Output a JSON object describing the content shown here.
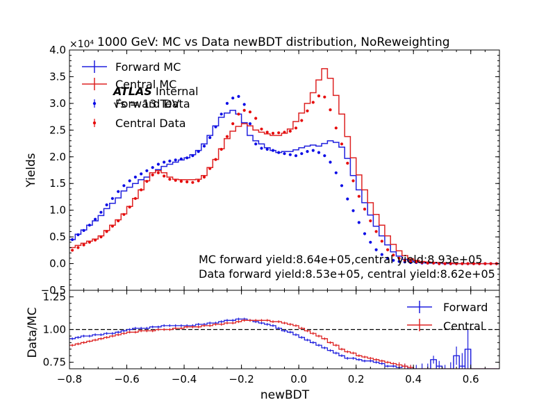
{
  "chart_data": [
    {
      "type": "line",
      "panel": "main",
      "title": "1000 GeV: MC vs Data newBDT distribution, NoReweighting",
      "ylabel": "Yields",
      "xlabel": "",
      "scale_label": "×10⁴",
      "xlim": [
        -0.8,
        0.7
      ],
      "ylim": [
        -0.5,
        4.0
      ],
      "xticks": [
        -0.8,
        -0.6,
        -0.4,
        -0.2,
        0.0,
        0.2,
        0.4,
        0.6
      ],
      "xtick_labels": [
        "−0.8",
        "−0.6",
        "−0.4",
        "−0.2",
        "0.0",
        "0.2",
        "0.4",
        "0.6"
      ],
      "yticks": [
        -0.5,
        0.0,
        0.5,
        1.0,
        1.5,
        2.0,
        2.5,
        3.0,
        3.5,
        4.0
      ],
      "ytick_labels": [
        "−0.5",
        "0.0",
        "0.5",
        "1.0",
        "1.5",
        "2.0",
        "2.5",
        "3.0",
        "3.5",
        "4.0"
      ],
      "bin_edges_start": -0.8,
      "bin_width": 0.02,
      "legend": {
        "placement": "upper-left",
        "entries": [
          "Forward MC",
          "Central MC",
          "Forward Data",
          "Central Data"
        ]
      },
      "atlas_label": {
        "bold": "ATLAS",
        "rest": " Internal",
        "energy": "√s = 13 TeV"
      },
      "annotations": [
        "MC forward yield:8.64e+05,central yield:8.93e+05",
        "Data forward yield:8.53e+05, central yield:8.62e+05"
      ],
      "series": [
        {
          "name": "Forward MC",
          "style": "step",
          "color": "#1f1fdd",
          "values": [
            0.45,
            0.55,
            0.63,
            0.72,
            0.8,
            0.9,
            1.03,
            1.13,
            1.23,
            1.36,
            1.43,
            1.5,
            1.57,
            1.62,
            1.7,
            1.76,
            1.82,
            1.86,
            1.9,
            1.94,
            1.98,
            2.04,
            2.12,
            2.24,
            2.4,
            2.58,
            2.74,
            2.82,
            2.87,
            2.8,
            2.64,
            2.4,
            2.3,
            2.24,
            2.17,
            2.12,
            2.08,
            2.1,
            2.1,
            2.13,
            2.17,
            2.2,
            2.22,
            2.2,
            2.25,
            2.3,
            2.27,
            2.18,
            1.97,
            1.65,
            1.38,
            1.14,
            0.91,
            0.7,
            0.52,
            0.35,
            0.22,
            0.14,
            0.08,
            0.05,
            0.03,
            0.02,
            0.01,
            0.01,
            0.01,
            0.0,
            0.0,
            0.0,
            0.0,
            0.0,
            0.0,
            0.0,
            0.0,
            0.0,
            0.0
          ]
        },
        {
          "name": "Central MC",
          "style": "step",
          "color": "#dd2222",
          "values": [
            0.3,
            0.34,
            0.38,
            0.42,
            0.46,
            0.52,
            0.62,
            0.72,
            0.82,
            0.93,
            1.07,
            1.22,
            1.38,
            1.55,
            1.7,
            1.74,
            1.7,
            1.62,
            1.58,
            1.57,
            1.57,
            1.57,
            1.58,
            1.65,
            1.8,
            1.95,
            2.15,
            2.34,
            2.48,
            2.57,
            2.62,
            2.58,
            2.5,
            2.46,
            2.43,
            2.4,
            2.4,
            2.44,
            2.52,
            2.66,
            2.82,
            3.0,
            3.2,
            3.44,
            3.65,
            3.47,
            3.15,
            2.8,
            2.38,
            1.98,
            1.66,
            1.38,
            1.14,
            0.92,
            0.72,
            0.52,
            0.36,
            0.24,
            0.15,
            0.09,
            0.06,
            0.04,
            0.03,
            0.02,
            0.02,
            0.01,
            0.01,
            0.0,
            0.0,
            0.0,
            0.0,
            0.0,
            0.0,
            0.0,
            0.0
          ]
        },
        {
          "name": "Forward Data",
          "style": "points",
          "color": "#0a0ae6",
          "values": [
            0.45,
            0.54,
            0.62,
            0.72,
            0.83,
            0.96,
            1.1,
            1.22,
            1.35,
            1.46,
            1.55,
            1.62,
            1.68,
            1.74,
            1.8,
            1.86,
            1.9,
            1.92,
            1.94,
            1.96,
            1.98,
            2.02,
            2.1,
            2.2,
            2.36,
            2.56,
            2.8,
            3.0,
            3.1,
            3.13,
            2.98,
            2.62,
            2.24,
            2.16,
            2.14,
            2.12,
            2.08,
            2.06,
            2.04,
            2.02,
            2.06,
            2.1,
            2.12,
            2.08,
            2.02,
            1.9,
            1.7,
            1.46,
            1.21,
            0.99,
            0.77,
            0.56,
            0.4,
            0.26,
            0.17,
            0.1,
            0.06,
            0.04,
            0.03,
            0.02,
            0.02,
            0.01,
            0.01,
            0.01,
            0.0,
            0.0,
            0.0,
            0.0,
            0.0,
            0.0,
            0.0,
            0.0,
            0.0,
            0.0,
            0.0
          ]
        },
        {
          "name": "Central Data",
          "style": "points",
          "color": "#e60a0a",
          "values": [
            0.25,
            0.3,
            0.35,
            0.4,
            0.44,
            0.5,
            0.6,
            0.7,
            0.8,
            0.92,
            1.06,
            1.22,
            1.38,
            1.54,
            1.66,
            1.7,
            1.64,
            1.58,
            1.56,
            1.54,
            1.53,
            1.52,
            1.55,
            1.62,
            1.78,
            1.95,
            2.14,
            2.38,
            2.62,
            2.8,
            2.87,
            2.84,
            2.72,
            2.52,
            2.46,
            2.44,
            2.45,
            2.46,
            2.48,
            2.54,
            2.68,
            2.86,
            3.02,
            3.14,
            3.12,
            2.88,
            2.54,
            2.24,
            1.88,
            1.55,
            1.26,
            1.02,
            0.8,
            0.6,
            0.42,
            0.26,
            0.16,
            0.1,
            0.06,
            0.04,
            0.03,
            0.02,
            0.01,
            0.01,
            0.0,
            0.0,
            0.0,
            0.0,
            0.0,
            0.0,
            0.0,
            0.0,
            0.0,
            0.0,
            0.0
          ]
        }
      ]
    },
    {
      "type": "line",
      "panel": "ratio",
      "xlabel": "newBDT",
      "ylabel": "Data/MC",
      "xlim": [
        -0.8,
        0.7
      ],
      "ylim": [
        0.7,
        1.3
      ],
      "xticks": [
        -0.8,
        -0.6,
        -0.4,
        -0.2,
        0.0,
        0.2,
        0.4,
        0.6
      ],
      "xtick_labels": [
        "−0.8",
        "−0.6",
        "−0.4",
        "−0.2",
        "0.0",
        "0.2",
        "0.4",
        "0.6"
      ],
      "yticks": [
        0.75,
        1.0,
        1.25
      ],
      "ytick_labels": [
        "0.75",
        "1.00",
        "1.25"
      ],
      "reference_line": 1.0,
      "bin_edges_start": -0.8,
      "bin_width": 0.02,
      "legend": {
        "placement": "upper-right",
        "entries": [
          "Forward",
          "Central"
        ]
      },
      "series": [
        {
          "name": "Forward",
          "style": "step-errorbar",
          "color": "#1f1fdd",
          "values": [
            0.93,
            0.94,
            0.95,
            0.95,
            0.96,
            0.96,
            0.97,
            0.97,
            0.98,
            0.99,
            1.0,
            1.01,
            1.01,
            1.01,
            1.02,
            1.02,
            1.03,
            1.03,
            1.03,
            1.03,
            1.03,
            1.03,
            1.04,
            1.04,
            1.05,
            1.05,
            1.06,
            1.07,
            1.07,
            1.08,
            1.08,
            1.07,
            1.06,
            1.05,
            1.04,
            1.03,
            1.01,
            0.99,
            0.98,
            0.96,
            0.94,
            0.92,
            0.9,
            0.88,
            0.86,
            0.84,
            0.82,
            0.8,
            0.78,
            0.78,
            0.77,
            0.76,
            0.76,
            0.75,
            0.74,
            0.72,
            0.72,
            0.71,
            0.72,
            0.7,
            0.7,
            0.7,
            0.7,
            0.77,
            0.72,
            0.7,
            0.7,
            0.8,
            0.72,
            0.85,
            0.7,
            0.7,
            0.7,
            0.7,
            0.7
          ],
          "errors": [
            0.01,
            0.01,
            0.01,
            0.01,
            0.01,
            0.01,
            0.01,
            0.01,
            0.01,
            0.01,
            0.01,
            0.01,
            0.01,
            0.01,
            0.01,
            0.01,
            0.01,
            0.01,
            0.01,
            0.01,
            0.01,
            0.01,
            0.01,
            0.01,
            0.01,
            0.01,
            0.01,
            0.01,
            0.01,
            0.01,
            0.01,
            0.01,
            0.01,
            0.01,
            0.01,
            0.01,
            0.01,
            0.01,
            0.01,
            0.01,
            0.01,
            0.01,
            0.01,
            0.01,
            0.01,
            0.01,
            0.01,
            0.01,
            0.01,
            0.01,
            0.01,
            0.01,
            0.01,
            0.01,
            0.01,
            0.01,
            0.01,
            0.02,
            0.02,
            0.03,
            0.03,
            0.04,
            0.04,
            0.03,
            0.04,
            0.03,
            0.05,
            0.07,
            0.1,
            0.15,
            0.0,
            0.0,
            0.0,
            0.0,
            0.0
          ]
        },
        {
          "name": "Central",
          "style": "step-errorbar",
          "color": "#dd2222",
          "values": [
            0.88,
            0.89,
            0.9,
            0.91,
            0.92,
            0.93,
            0.94,
            0.95,
            0.96,
            0.97,
            0.98,
            0.98,
            0.99,
            0.99,
            0.99,
            1.0,
            1.0,
            1.0,
            1.01,
            1.01,
            1.02,
            1.02,
            1.02,
            1.03,
            1.03,
            1.04,
            1.04,
            1.05,
            1.05,
            1.06,
            1.07,
            1.07,
            1.07,
            1.07,
            1.07,
            1.06,
            1.06,
            1.05,
            1.04,
            1.03,
            1.01,
            0.99,
            0.97,
            0.95,
            0.93,
            0.9,
            0.88,
            0.85,
            0.83,
            0.82,
            0.8,
            0.79,
            0.78,
            0.77,
            0.76,
            0.75,
            0.74,
            0.73,
            0.72,
            0.71,
            0.7,
            0.7,
            0.7,
            0.7,
            0.7,
            0.7,
            0.7,
            0.7,
            0.7,
            0.7,
            0.7,
            0.7,
            0.7,
            0.7,
            0.7
          ],
          "errors": [
            0.01,
            0.01,
            0.01,
            0.01,
            0.01,
            0.01,
            0.01,
            0.01,
            0.01,
            0.01,
            0.01,
            0.01,
            0.01,
            0.01,
            0.01,
            0.01,
            0.01,
            0.01,
            0.01,
            0.01,
            0.01,
            0.01,
            0.01,
            0.01,
            0.01,
            0.01,
            0.01,
            0.01,
            0.01,
            0.01,
            0.01,
            0.01,
            0.01,
            0.01,
            0.01,
            0.01,
            0.01,
            0.01,
            0.01,
            0.01,
            0.01,
            0.01,
            0.01,
            0.01,
            0.01,
            0.01,
            0.01,
            0.01,
            0.01,
            0.01,
            0.01,
            0.01,
            0.01,
            0.01,
            0.01,
            0.01,
            0.01,
            0.02,
            0.02,
            0.02,
            0.0,
            0.0,
            0.0,
            0.0,
            0.0,
            0.0,
            0.0,
            0.0,
            0.0,
            0.0,
            0.0,
            0.0,
            0.0,
            0.0,
            0.0
          ]
        }
      ]
    }
  ]
}
